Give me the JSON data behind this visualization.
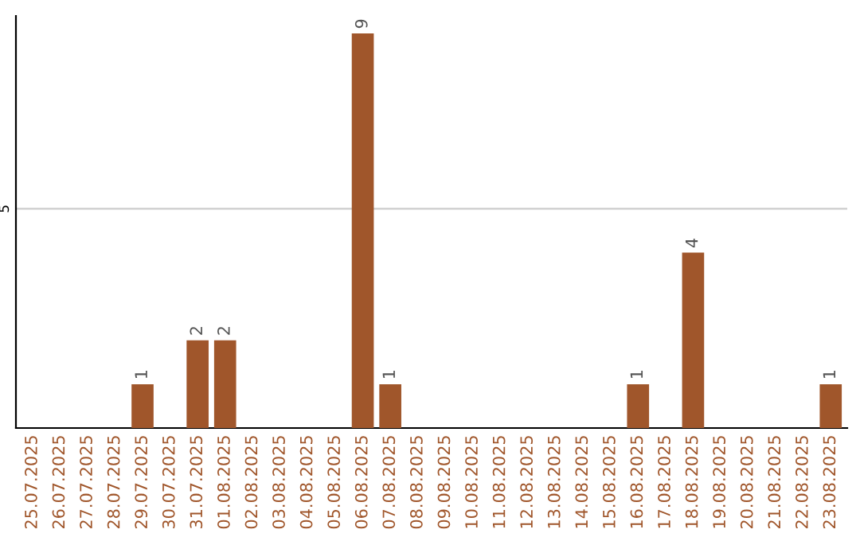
{
  "chart_data": {
    "type": "bar",
    "categories": [
      "25.07.2025",
      "26.07.2025",
      "27.07.2025",
      "28.07.2025",
      "29.07.2025",
      "30.07.2025",
      "31.07.2025",
      "01.08.2025",
      "02.08.2025",
      "03.08.2025",
      "04.08.2025",
      "05.08.2025",
      "06.08.2025",
      "07.08.2025",
      "08.08.2025",
      "09.08.2025",
      "10.08.2025",
      "11.08.2025",
      "12.08.2025",
      "13.08.2025",
      "14.08.2025",
      "15.08.2025",
      "16.08.2025",
      "17.08.2025",
      "18.08.2025",
      "19.08.2025",
      "20.08.2025",
      "21.08.2025",
      "22.08.2025",
      "23.08.2025"
    ],
    "values": [
      0,
      0,
      0,
      0,
      1,
      0,
      2,
      2,
      0,
      0,
      0,
      0,
      9,
      1,
      0,
      0,
      0,
      0,
      0,
      0,
      0,
      0,
      1,
      0,
      4,
      0,
      0,
      0,
      0,
      1
    ],
    "value_labels": [
      null,
      null,
      null,
      null,
      "1",
      null,
      "2",
      "2",
      null,
      null,
      null,
      null,
      "9",
      "1",
      null,
      null,
      null,
      null,
      null,
      null,
      null,
      null,
      "1",
      null,
      "4",
      null,
      null,
      null,
      null,
      "1"
    ],
    "color": "#a0562b",
    "ylim": [
      0,
      9.4
    ],
    "yticks": [
      5
    ],
    "grid": "y"
  }
}
